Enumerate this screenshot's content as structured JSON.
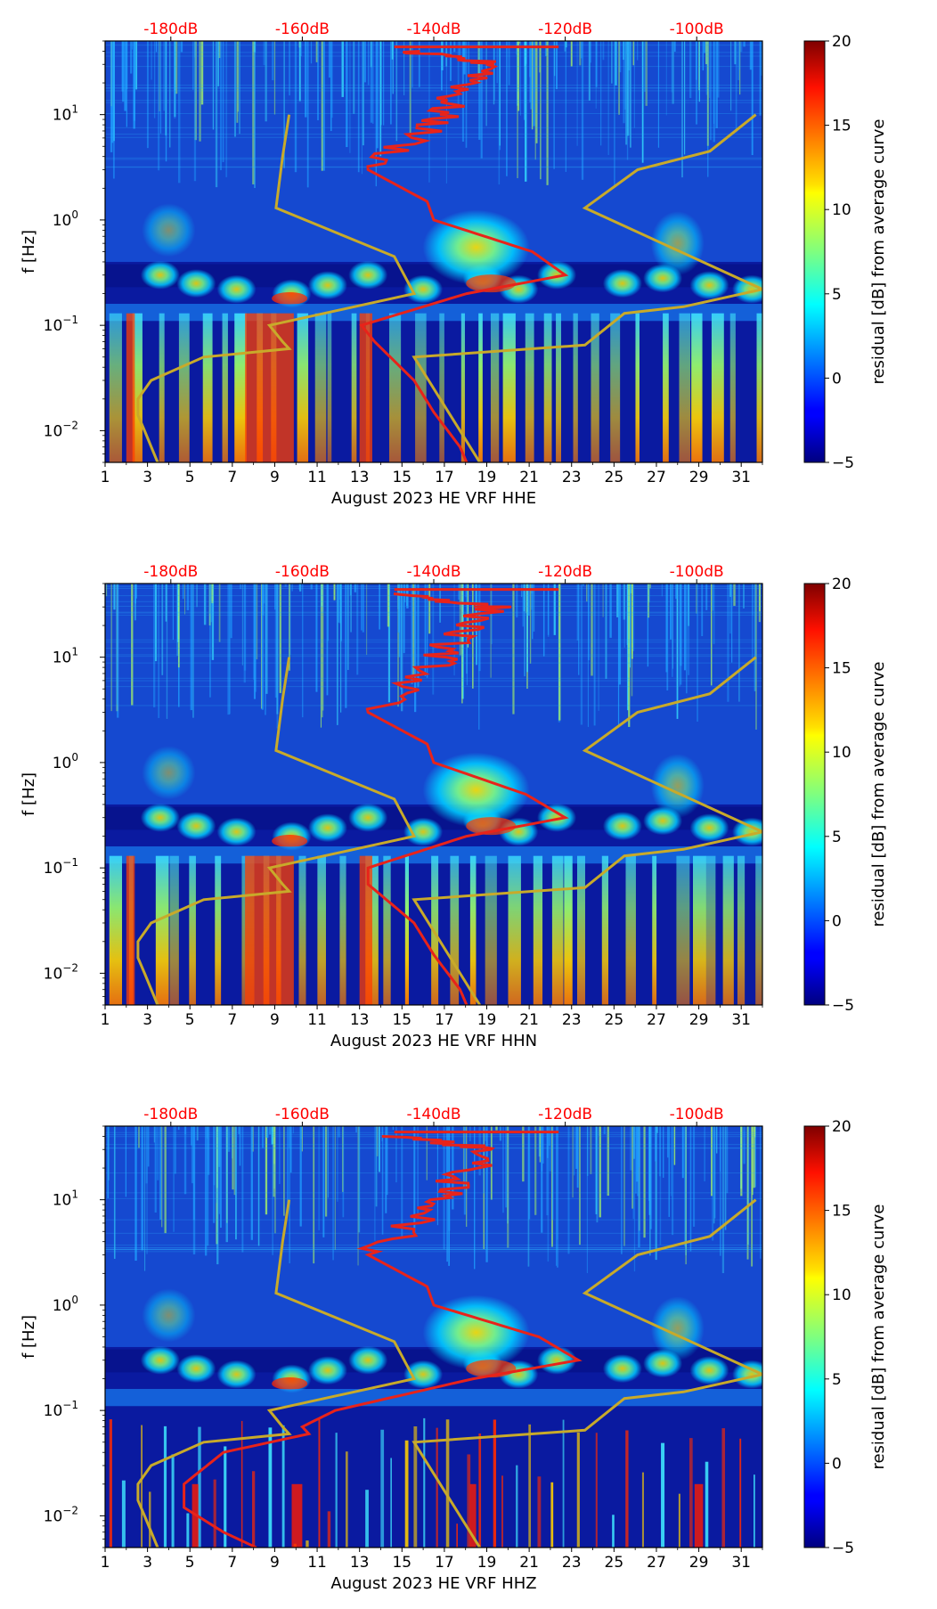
{
  "colorbar": {
    "label": "residual [dB] from average curve",
    "ticks": [
      "20",
      "15",
      "10",
      "5",
      "0",
      "−5"
    ],
    "tick_values": [
      20,
      15,
      10,
      5,
      0,
      -5
    ],
    "range": [
      -5,
      20
    ],
    "colormap": "jet"
  },
  "colors": {
    "top_axis_labels": "#ff0000",
    "power_curve": "#e8231a",
    "noise_model": "#c8aa2a",
    "background_blue": "#0a1aa0"
  },
  "chart_data": [
    {
      "type": "spectrogram",
      "title": "",
      "xlabel": "August 2023 HE VRF  HHE",
      "ylabel": "f [Hz]",
      "x_ticks": [
        "1",
        "3",
        "5",
        "7",
        "9",
        "11",
        "13",
        "15",
        "17",
        "19",
        "21",
        "23",
        "25",
        "27",
        "29",
        "31"
      ],
      "x_tick_values": [
        1,
        3,
        5,
        7,
        9,
        11,
        13,
        15,
        17,
        19,
        21,
        23,
        25,
        27,
        29,
        31
      ],
      "xlim": [
        1,
        32
      ],
      "ylim": [
        0.005,
        50
      ],
      "y_ticks": [
        {
          "base": "10",
          "exp": "1",
          "value": 10
        },
        {
          "base": "10",
          "exp": "0",
          "value": 1
        },
        {
          "base": "10",
          "exp": "−1",
          "value": 0.1
        },
        {
          "base": "10",
          "exp": "−2",
          "value": 0.01
        }
      ],
      "top_axis_ticks": [
        "-180dB",
        "-160dB",
        "-140dB",
        "-120dB",
        "-100dB"
      ],
      "top_axis_values": [
        -180,
        -160,
        -140,
        -120,
        -100
      ],
      "top_axis_range": [
        -190,
        -90
      ],
      "median_psd_db": [
        [
          40,
          -145
        ],
        [
          30,
          -130
        ],
        [
          15,
          -137
        ],
        [
          8,
          -140
        ],
        [
          3,
          -150
        ],
        [
          1.5,
          -141
        ],
        [
          1.0,
          -140
        ],
        [
          0.5,
          -125
        ],
        [
          0.3,
          -120
        ],
        [
          0.2,
          -135
        ],
        [
          0.1,
          -151
        ],
        [
          0.07,
          -149
        ],
        [
          0.03,
          -143
        ],
        [
          0.015,
          -140
        ],
        [
          0.007,
          -136
        ],
        [
          0.005,
          -135
        ]
      ],
      "noise_model_db": [
        [
          10,
          -162
        ],
        [
          4,
          -163
        ],
        [
          1.3,
          -164
        ],
        [
          0.45,
          -146
        ],
        [
          0.2,
          -143
        ],
        [
          0.1,
          -165
        ],
        [
          0.07,
          -163
        ],
        [
          0.06,
          -162
        ],
        [
          0.05,
          -175
        ],
        [
          0.03,
          -183
        ],
        [
          0.02,
          -185
        ],
        [
          0.014,
          -185
        ],
        [
          0.01,
          -184
        ],
        [
          0.005,
          -182
        ]
      ],
      "high_noise_model_db": [
        [
          10,
          -91
        ],
        [
          4.5,
          -98
        ],
        [
          3,
          -109
        ],
        [
          1.3,
          -117
        ],
        [
          0.22,
          -90
        ],
        [
          0.15,
          -102
        ],
        [
          0.13,
          -111
        ],
        [
          0.065,
          -117
        ],
        [
          0.05,
          -143
        ],
        [
          0.005,
          -133
        ]
      ]
    },
    {
      "type": "spectrogram",
      "title": "",
      "xlabel": "August 2023 HE VRF  HHN",
      "ylabel": "f [Hz]",
      "x_ticks": [
        "1",
        "3",
        "5",
        "7",
        "9",
        "11",
        "13",
        "15",
        "17",
        "19",
        "21",
        "23",
        "25",
        "27",
        "29",
        "31"
      ],
      "x_tick_values": [
        1,
        3,
        5,
        7,
        9,
        11,
        13,
        15,
        17,
        19,
        21,
        23,
        25,
        27,
        29,
        31
      ],
      "xlim": [
        1,
        32
      ],
      "ylim": [
        0.005,
        50
      ],
      "y_ticks": [
        {
          "base": "10",
          "exp": "1",
          "value": 10
        },
        {
          "base": "10",
          "exp": "0",
          "value": 1
        },
        {
          "base": "10",
          "exp": "−1",
          "value": 0.1
        },
        {
          "base": "10",
          "exp": "−2",
          "value": 0.01
        }
      ],
      "top_axis_ticks": [
        "-180dB",
        "-160dB",
        "-140dB",
        "-120dB",
        "-100dB"
      ],
      "top_axis_values": [
        -180,
        -160,
        -140,
        -120,
        -100
      ],
      "top_axis_range": [
        -190,
        -90
      ],
      "median_psd_db": [
        [
          40,
          -145
        ],
        [
          30,
          -131
        ],
        [
          15,
          -137
        ],
        [
          8,
          -140
        ],
        [
          3,
          -150
        ],
        [
          1.5,
          -141
        ],
        [
          1.0,
          -140
        ],
        [
          0.5,
          -126
        ],
        [
          0.3,
          -120
        ],
        [
          0.2,
          -135
        ],
        [
          0.1,
          -150
        ],
        [
          0.07,
          -150
        ],
        [
          0.03,
          -143
        ],
        [
          0.015,
          -140
        ],
        [
          0.007,
          -136
        ],
        [
          0.005,
          -135
        ]
      ],
      "noise_model_db": [
        [
          10,
          -162
        ],
        [
          4,
          -163
        ],
        [
          1.3,
          -164
        ],
        [
          0.45,
          -146
        ],
        [
          0.2,
          -143
        ],
        [
          0.1,
          -165
        ],
        [
          0.07,
          -163
        ],
        [
          0.06,
          -162
        ],
        [
          0.05,
          -175
        ],
        [
          0.03,
          -183
        ],
        [
          0.02,
          -185
        ],
        [
          0.014,
          -185
        ],
        [
          0.01,
          -184
        ],
        [
          0.005,
          -182
        ]
      ],
      "high_noise_model_db": [
        [
          10,
          -91
        ],
        [
          4.5,
          -98
        ],
        [
          3,
          -109
        ],
        [
          1.3,
          -117
        ],
        [
          0.22,
          -90
        ],
        [
          0.15,
          -102
        ],
        [
          0.13,
          -111
        ],
        [
          0.065,
          -117
        ],
        [
          0.05,
          -143
        ],
        [
          0.005,
          -133
        ]
      ]
    },
    {
      "type": "spectrogram",
      "title": "",
      "xlabel": "August 2023 HE VRF  HHZ",
      "ylabel": "f [Hz]",
      "x_ticks": [
        "1",
        "3",
        "5",
        "7",
        "9",
        "11",
        "13",
        "15",
        "17",
        "19",
        "21",
        "23",
        "25",
        "27",
        "29",
        "31"
      ],
      "x_tick_values": [
        1,
        3,
        5,
        7,
        9,
        11,
        13,
        15,
        17,
        19,
        21,
        23,
        25,
        27,
        29,
        31
      ],
      "xlim": [
        1,
        32
      ],
      "ylim": [
        0.005,
        50
      ],
      "y_ticks": [
        {
          "base": "10",
          "exp": "1",
          "value": 10
        },
        {
          "base": "10",
          "exp": "0",
          "value": 1
        },
        {
          "base": "10",
          "exp": "−1",
          "value": 0.1
        },
        {
          "base": "10",
          "exp": "−2",
          "value": 0.01
        }
      ],
      "top_axis_ticks": [
        "-180dB",
        "-160dB",
        "-140dB",
        "-120dB",
        "-100dB"
      ],
      "top_axis_values": [
        -180,
        -160,
        -140,
        -120,
        -100
      ],
      "top_axis_range": [
        -190,
        -90
      ],
      "median_psd_db": [
        [
          40,
          -145
        ],
        [
          30,
          -131
        ],
        [
          15,
          -137
        ],
        [
          8,
          -140
        ],
        [
          3,
          -150
        ],
        [
          1.5,
          -141
        ],
        [
          1.0,
          -140
        ],
        [
          0.5,
          -124
        ],
        [
          0.3,
          -118
        ],
        [
          0.2,
          -134
        ],
        [
          0.1,
          -155
        ],
        [
          0.07,
          -160
        ],
        [
          0.06,
          -159
        ],
        [
          0.04,
          -172
        ],
        [
          0.02,
          -178
        ],
        [
          0.012,
          -178
        ],
        [
          0.007,
          -172
        ],
        [
          0.005,
          -167
        ]
      ],
      "noise_model_db": [
        [
          10,
          -162
        ],
        [
          4,
          -163
        ],
        [
          1.3,
          -164
        ],
        [
          0.45,
          -146
        ],
        [
          0.2,
          -143
        ],
        [
          0.1,
          -165
        ],
        [
          0.07,
          -163
        ],
        [
          0.06,
          -162
        ],
        [
          0.05,
          -175
        ],
        [
          0.03,
          -183
        ],
        [
          0.02,
          -185
        ],
        [
          0.014,
          -185
        ],
        [
          0.01,
          -184
        ],
        [
          0.005,
          -182
        ]
      ],
      "high_noise_model_db": [
        [
          10,
          -91
        ],
        [
          4.5,
          -98
        ],
        [
          3,
          -109
        ],
        [
          1.3,
          -117
        ],
        [
          0.22,
          -90
        ],
        [
          0.15,
          -102
        ],
        [
          0.13,
          -111
        ],
        [
          0.065,
          -117
        ],
        [
          0.05,
          -143
        ],
        [
          0.005,
          -133
        ]
      ]
    }
  ]
}
